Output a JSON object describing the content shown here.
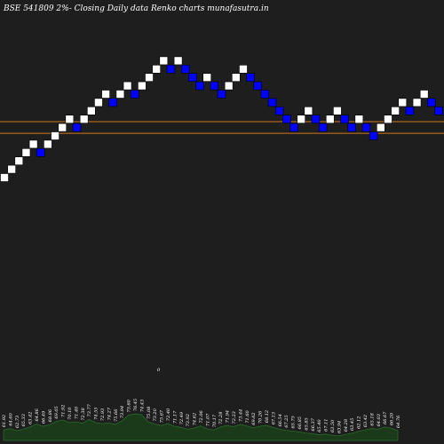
{
  "chart_data": {
    "type": "renko",
    "title": "BSE 541809 2%-  Closing Daily data  Renko  charts munafasutra.in",
    "colors": {
      "background": "#1e1e1e",
      "up_brick": "#ffffff",
      "down_brick": "#0000ff",
      "line": "#d2781e",
      "volume_fill": "#1a3a1a",
      "volume_stroke": "#2a6a2a",
      "text": "#ffffff"
    },
    "price_range": [
      55,
      80
    ],
    "horizontal_lines": [
      67.7,
      66.3
    ],
    "bricks": [
      {
        "level": 61,
        "dir": "up"
      },
      {
        "level": 62,
        "dir": "up"
      },
      {
        "level": 63,
        "dir": "up"
      },
      {
        "level": 64,
        "dir": "up"
      },
      {
        "level": 65,
        "dir": "up"
      },
      {
        "level": 64,
        "dir": "down"
      },
      {
        "level": 65,
        "dir": "up"
      },
      {
        "level": 66,
        "dir": "up"
      },
      {
        "level": 67,
        "dir": "up"
      },
      {
        "level": 68,
        "dir": "up"
      },
      {
        "level": 67,
        "dir": "down"
      },
      {
        "level": 68,
        "dir": "up"
      },
      {
        "level": 69,
        "dir": "up"
      },
      {
        "level": 70,
        "dir": "up"
      },
      {
        "level": 71,
        "dir": "up"
      },
      {
        "level": 70,
        "dir": "down"
      },
      {
        "level": 71,
        "dir": "up"
      },
      {
        "level": 72,
        "dir": "up"
      },
      {
        "level": 71,
        "dir": "down"
      },
      {
        "level": 72,
        "dir": "up"
      },
      {
        "level": 73,
        "dir": "up"
      },
      {
        "level": 74,
        "dir": "up"
      },
      {
        "level": 75,
        "dir": "up"
      },
      {
        "level": 74,
        "dir": "down"
      },
      {
        "level": 75,
        "dir": "up"
      },
      {
        "level": 74,
        "dir": "down"
      },
      {
        "level": 73,
        "dir": "down"
      },
      {
        "level": 72,
        "dir": "down"
      },
      {
        "level": 73,
        "dir": "up"
      },
      {
        "level": 72,
        "dir": "down"
      },
      {
        "level": 71,
        "dir": "down"
      },
      {
        "level": 72,
        "dir": "up"
      },
      {
        "level": 73,
        "dir": "up"
      },
      {
        "level": 74,
        "dir": "up"
      },
      {
        "level": 73,
        "dir": "down"
      },
      {
        "level": 72,
        "dir": "down"
      },
      {
        "level": 71,
        "dir": "down"
      },
      {
        "level": 70,
        "dir": "down"
      },
      {
        "level": 69,
        "dir": "down"
      },
      {
        "level": 68,
        "dir": "down"
      },
      {
        "level": 67,
        "dir": "down"
      },
      {
        "level": 68,
        "dir": "up"
      },
      {
        "level": 69,
        "dir": "up"
      },
      {
        "level": 68,
        "dir": "down"
      },
      {
        "level": 67,
        "dir": "down"
      },
      {
        "level": 68,
        "dir": "up"
      },
      {
        "level": 69,
        "dir": "up"
      },
      {
        "level": 68,
        "dir": "down"
      },
      {
        "level": 67,
        "dir": "down"
      },
      {
        "level": 68,
        "dir": "up"
      },
      {
        "level": 67,
        "dir": "down"
      },
      {
        "level": 66,
        "dir": "down"
      },
      {
        "level": 67,
        "dir": "up"
      },
      {
        "level": 68,
        "dir": "up"
      },
      {
        "level": 69,
        "dir": "up"
      },
      {
        "level": 70,
        "dir": "up"
      },
      {
        "level": 69,
        "dir": "down"
      },
      {
        "level": 70,
        "dir": "up"
      },
      {
        "level": 71,
        "dir": "up"
      },
      {
        "level": 70,
        "dir": "down"
      },
      {
        "level": 69,
        "dir": "down"
      }
    ],
    "volume_labels": [
      "61.92",
      "64.60",
      "62.73",
      "65.33",
      "63.42",
      "64.86",
      "66.49",
      "68.86",
      "69.05",
      "71.92",
      "70.10",
      "71.40",
      "72.38",
      "73.77",
      "74.55",
      "72.93",
      "74.27",
      "75.66",
      "73.94",
      "75.60",
      "76.45",
      "74.43",
      "75.08",
      "73.20",
      "75.67",
      "72.40",
      "71.17",
      "72.49",
      "73.92",
      "74.62",
      "72.06",
      "71.07",
      "70.17",
      "72.28",
      "71.94",
      "72.23",
      "73.44",
      "71.60",
      "69.62",
      "70.26",
      "68.12",
      "67.13",
      "66.54",
      "67.25",
      "65.75",
      "66.85",
      "65.85",
      "66.37",
      "65.40",
      "67.11",
      "63.50",
      "63.94",
      "64.28",
      "63.45",
      "62.12",
      "63.42",
      "65.18",
      "64.03",
      "66.67",
      "66.20",
      "64.76"
    ],
    "volume_values": [
      2.8,
      3.2,
      2.6,
      3.0,
      3.6,
      4.4,
      3.8,
      4.2,
      5.1,
      5.5,
      4.8,
      5.0,
      4.6,
      5.6,
      4.8,
      4.5,
      4.7,
      4.3,
      5.2,
      6.8,
      7.1,
      6.9,
      5.0,
      4.4,
      4.0,
      4.5,
      3.8,
      3.5,
      3.0,
      3.3,
      3.9,
      3.1,
      2.8,
      3.6,
      4.0,
      3.7,
      4.3,
      3.9,
      3.4,
      3.8,
      4.0,
      3.5,
      3.0,
      2.7,
      2.5,
      2.3,
      2.0,
      1.8,
      1.5,
      1.7,
      1.4,
      1.2,
      1.6,
      1.9,
      2.4,
      2.8,
      3.2,
      3.0,
      3.6,
      3.3,
      2.6
    ],
    "marker": "0"
  }
}
